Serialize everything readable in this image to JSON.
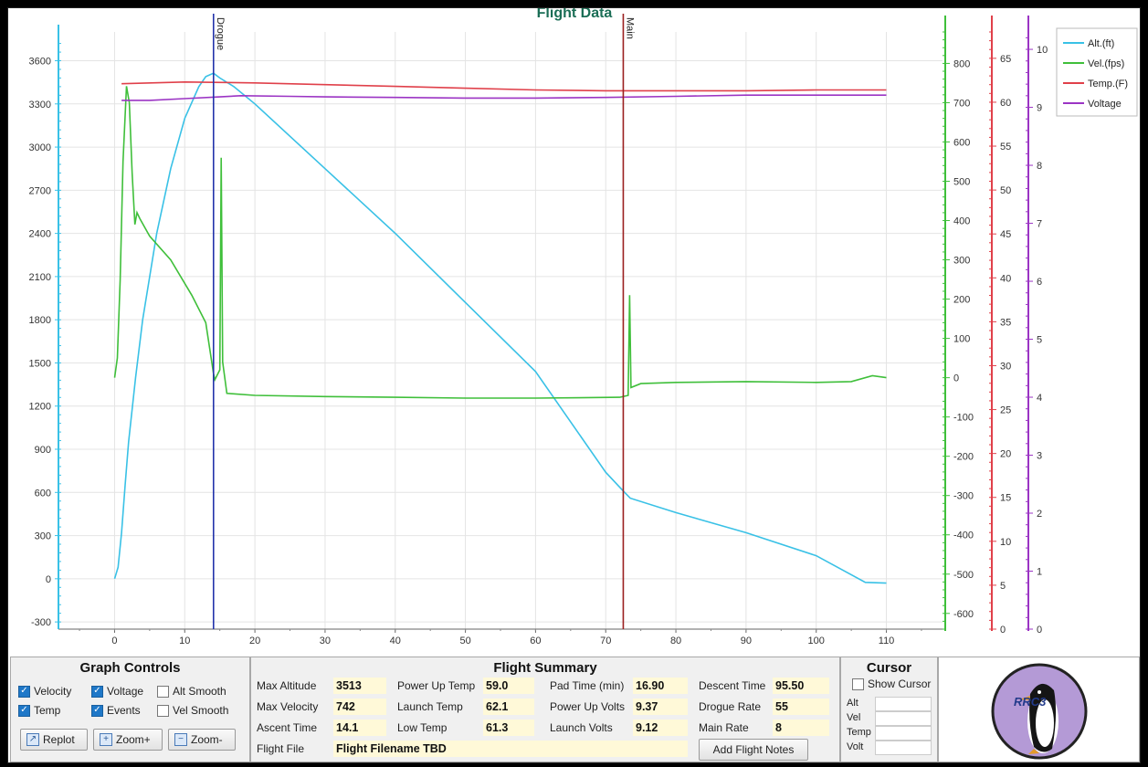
{
  "chart_data": {
    "type": "line",
    "title": "Flight Data",
    "x_ticks": [
      0,
      10,
      20,
      30,
      40,
      50,
      60,
      70,
      80,
      90,
      100,
      110
    ],
    "axes": {
      "alt": {
        "label": "Alt.(ft)",
        "min": -350,
        "max": 3800,
        "ticks": [
          -300,
          0,
          300,
          600,
          900,
          1200,
          1500,
          1800,
          2100,
          2400,
          2700,
          3000,
          3300,
          3600
        ],
        "color": "#39c1e6"
      },
      "vel": {
        "label": "Vel.(fps)",
        "min": -640,
        "max": 880,
        "ticks": [
          -600,
          -500,
          -400,
          -300,
          -200,
          -100,
          0,
          100,
          200,
          300,
          400,
          500,
          600,
          700,
          800
        ],
        "color": "#3fbf3a"
      },
      "temp": {
        "label": "Temp.(F)",
        "min": 0,
        "max": 68,
        "ticks": [
          0,
          5,
          10,
          15,
          20,
          25,
          30,
          35,
          40,
          45,
          50,
          55,
          60,
          65
        ],
        "color": "#e0404a"
      },
      "volt": {
        "label": "Voltage",
        "min": 0,
        "max": 10.3,
        "ticks": [
          0,
          1,
          2,
          3,
          4,
          5,
          6,
          7,
          8,
          9,
          10
        ],
        "color": "#9b34c4"
      }
    },
    "events": [
      {
        "name": "Drogue",
        "x": 14.1,
        "color": "#2233aa"
      },
      {
        "name": "Main",
        "x": 72.5,
        "color": "#9b2020"
      }
    ],
    "series": [
      {
        "name": "Alt.(ft)",
        "axis": "alt",
        "color": "#39c1e6",
        "points": [
          [
            0,
            0
          ],
          [
            0.5,
            80
          ],
          [
            1,
            320
          ],
          [
            1.5,
            650
          ],
          [
            2,
            950
          ],
          [
            3,
            1400
          ],
          [
            4,
            1800
          ],
          [
            6,
            2400
          ],
          [
            8,
            2850
          ],
          [
            10,
            3200
          ],
          [
            12,
            3420
          ],
          [
            13,
            3490
          ],
          [
            14.1,
            3513
          ],
          [
            15,
            3480
          ],
          [
            17,
            3420
          ],
          [
            20,
            3300
          ],
          [
            30,
            2850
          ],
          [
            40,
            2400
          ],
          [
            50,
            1920
          ],
          [
            60,
            1440
          ],
          [
            70,
            740
          ],
          [
            72.5,
            610
          ],
          [
            73.5,
            560
          ],
          [
            80,
            460
          ],
          [
            90,
            320
          ],
          [
            100,
            160
          ],
          [
            107,
            -25
          ],
          [
            110,
            -30
          ]
        ]
      },
      {
        "name": "Vel.(fps)",
        "axis": "vel",
        "color": "#3fbf3a",
        "points": [
          [
            0,
            0
          ],
          [
            0.4,
            50
          ],
          [
            0.8,
            250
          ],
          [
            1.2,
            550
          ],
          [
            1.7,
            742
          ],
          [
            2.1,
            700
          ],
          [
            2.5,
            520
          ],
          [
            2.9,
            390
          ],
          [
            3.2,
            420
          ],
          [
            3.6,
            405
          ],
          [
            5,
            360
          ],
          [
            8,
            300
          ],
          [
            11,
            210
          ],
          [
            13,
            140
          ],
          [
            14.1,
            10
          ],
          [
            14.3,
            -5
          ],
          [
            15.0,
            20
          ],
          [
            15.2,
            560
          ],
          [
            15.4,
            40
          ],
          [
            16,
            -40
          ],
          [
            20,
            -45
          ],
          [
            30,
            -48
          ],
          [
            40,
            -50
          ],
          [
            50,
            -52
          ],
          [
            60,
            -52
          ],
          [
            72,
            -50
          ],
          [
            73.2,
            -45
          ],
          [
            73.4,
            210
          ],
          [
            73.6,
            -25
          ],
          [
            75,
            -15
          ],
          [
            80,
            -12
          ],
          [
            90,
            -10
          ],
          [
            100,
            -12
          ],
          [
            105,
            -10
          ],
          [
            108,
            5
          ],
          [
            110,
            0
          ]
        ]
      },
      {
        "name": "Temp.(F)",
        "axis": "temp",
        "color": "#e0404a",
        "points": [
          [
            1,
            62.1
          ],
          [
            10,
            62.3
          ],
          [
            20,
            62.2
          ],
          [
            30,
            62.0
          ],
          [
            40,
            61.8
          ],
          [
            50,
            61.6
          ],
          [
            60,
            61.4
          ],
          [
            70,
            61.3
          ],
          [
            80,
            61.3
          ],
          [
            90,
            61.3
          ],
          [
            100,
            61.4
          ],
          [
            110,
            61.4
          ]
        ]
      },
      {
        "name": "Voltage",
        "axis": "volt",
        "color": "#9b34c4",
        "points": [
          [
            1,
            9.12
          ],
          [
            5,
            9.12
          ],
          [
            10,
            9.15
          ],
          [
            15,
            9.18
          ],
          [
            18,
            9.2
          ],
          [
            25,
            9.19
          ],
          [
            30,
            9.18
          ],
          [
            40,
            9.17
          ],
          [
            50,
            9.16
          ],
          [
            60,
            9.16
          ],
          [
            70,
            9.17
          ],
          [
            80,
            9.19
          ],
          [
            90,
            9.21
          ],
          [
            100,
            9.21
          ],
          [
            110,
            9.21
          ]
        ]
      }
    ]
  },
  "graph_controls": {
    "title": "Graph Controls",
    "velocity": "Velocity",
    "voltage": "Voltage",
    "alt_smooth": "Alt Smooth",
    "temp": "Temp",
    "events": "Events",
    "vel_smooth": "Vel Smooth",
    "replot": "Replot",
    "zoom_in": "Zoom+",
    "zoom_out": "Zoom-"
  },
  "summary": {
    "title": "Flight Summary",
    "max_altitude_label": "Max Altitude",
    "max_altitude": "3513",
    "max_velocity_label": "Max Velocity",
    "max_velocity": "742",
    "ascent_time_label": "Ascent Time",
    "ascent_time": "14.1",
    "power_up_temp_label": "Power Up Temp",
    "power_up_temp": "59.0",
    "launch_temp_label": "Launch Temp",
    "launch_temp": "62.1",
    "low_temp_label": "Low Temp",
    "low_temp": "61.3",
    "pad_time_label": "Pad Time (min)",
    "pad_time": "16.90",
    "power_up_volts_label": "Power Up Volts",
    "power_up_volts": "9.37",
    "launch_volts_label": "Launch Volts",
    "launch_volts": "9.12",
    "descent_time_label": "Descent Time",
    "descent_time": "95.50",
    "drogue_rate_label": "Drogue Rate",
    "drogue_rate": "55",
    "main_rate_label": "Main Rate",
    "main_rate": "8",
    "flight_file_label": "Flight File",
    "flight_file": "Flight Filename TBD",
    "add_notes": "Add Flight Notes"
  },
  "cursor": {
    "title": "Cursor",
    "show_cursor": "Show Cursor",
    "alt": "Alt",
    "vel": "Vel",
    "temp": "Temp",
    "volt": "Volt"
  },
  "logo": {
    "text": "RRC3"
  }
}
